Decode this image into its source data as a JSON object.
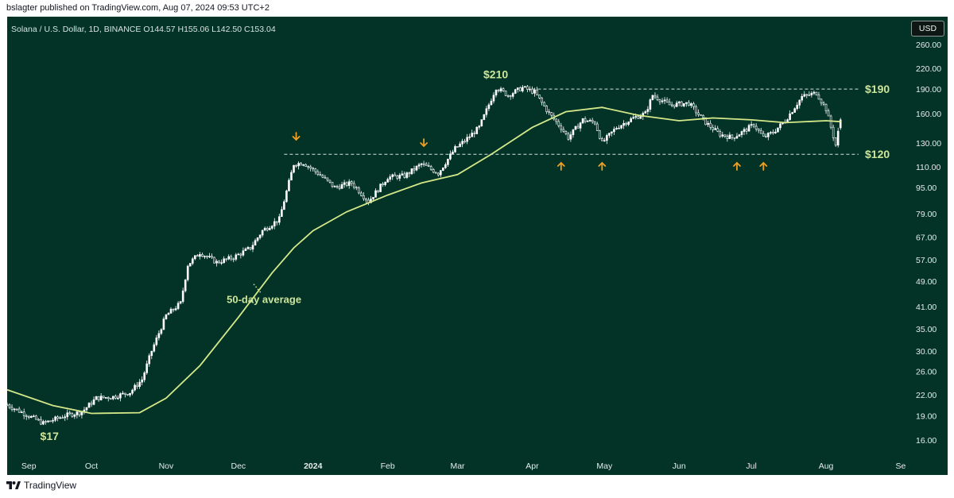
{
  "header": {
    "text": "bslagter published on TradingView.com, Aug 07, 2024 09:53 UTC+2"
  },
  "symbol_info": "Solana / U.S. Dollar, 1D, BINANCE  O144.57  H155.06  L142.50  C153.04",
  "currency_button": "USD",
  "footer": {
    "brand": "TradingView"
  },
  "colors": {
    "background": "#033327",
    "candle": "#ffffff",
    "ma_line": "#d4e88a",
    "arrow": "#f0a020",
    "annotation": "#cde59a"
  },
  "chart_data": {
    "type": "candlestick",
    "y_scale": "log",
    "y_ticks": [
      "260.00",
      "220.00",
      "190.00",
      "160.00",
      "130.00",
      "110.00",
      "95.00",
      "79.00",
      "67.00",
      "57.00",
      "49.00",
      "41.00",
      "35.00",
      "30.00",
      "26.00",
      "22.00",
      "19.00",
      "16.00"
    ],
    "x_ticks": [
      "Sep",
      "Oct",
      "Nov",
      "Dec",
      "2024",
      "Feb",
      "Mar",
      "Apr",
      "May",
      "Jun",
      "Jul",
      "Aug",
      "Se"
    ],
    "x_range": [
      "2023-08-27",
      "2024-09-02"
    ],
    "last_ohlc": {
      "open": 144.57,
      "high": 155.06,
      "low": 142.5,
      "close": 153.04
    },
    "price_path": [
      [
        "2023-08-27",
        20.5
      ],
      [
        "2023-09-11",
        18.0
      ],
      [
        "2023-09-20",
        19.0
      ],
      [
        "2023-09-27",
        19.5
      ],
      [
        "2023-10-03",
        21.5
      ],
      [
        "2023-10-10",
        21.7
      ],
      [
        "2023-10-17",
        22.4
      ],
      [
        "2023-10-22",
        24.5
      ],
      [
        "2023-10-26",
        30.0
      ],
      [
        "2023-11-01",
        38.5
      ],
      [
        "2023-11-07",
        42.0
      ],
      [
        "2023-11-10",
        55.0
      ],
      [
        "2023-11-15",
        60.0
      ],
      [
        "2023-11-22",
        56.0
      ],
      [
        "2023-11-29",
        58.0
      ],
      [
        "2023-12-06",
        62.0
      ],
      [
        "2023-12-11",
        70.0
      ],
      [
        "2023-12-18",
        76.0
      ],
      [
        "2023-12-24",
        112.0
      ],
      [
        "2023-12-28",
        113.0
      ],
      [
        "2024-01-03",
        105.0
      ],
      [
        "2024-01-10",
        95.0
      ],
      [
        "2024-01-17",
        98.0
      ],
      [
        "2024-01-24",
        86.0
      ],
      [
        "2024-02-01",
        102.0
      ],
      [
        "2024-02-08",
        103.0
      ],
      [
        "2024-02-15",
        112.0
      ],
      [
        "2024-02-22",
        105.0
      ],
      [
        "2024-02-29",
        125.0
      ],
      [
        "2024-03-04",
        132.0
      ],
      [
        "2024-03-10",
        145.0
      ],
      [
        "2024-03-17",
        192.0
      ],
      [
        "2024-03-22",
        182.0
      ],
      [
        "2024-03-28",
        192.0
      ],
      [
        "2024-04-02",
        186.0
      ],
      [
        "2024-04-08",
        160.0
      ],
      [
        "2024-04-13",
        145.0
      ],
      [
        "2024-04-16",
        135.0
      ],
      [
        "2024-04-22",
        153.0
      ],
      [
        "2024-04-27",
        150.0
      ],
      [
        "2024-04-30",
        130.0
      ],
      [
        "2024-05-06",
        145.0
      ],
      [
        "2024-05-13",
        155.0
      ],
      [
        "2024-05-18",
        160.0
      ],
      [
        "2024-05-21",
        182.0
      ],
      [
        "2024-05-28",
        170.0
      ],
      [
        "2024-06-05",
        172.0
      ],
      [
        "2024-06-12",
        150.0
      ],
      [
        "2024-06-18",
        138.0
      ],
      [
        "2024-06-23",
        135.0
      ],
      [
        "2024-06-27",
        140.0
      ],
      [
        "2024-07-02",
        148.0
      ],
      [
        "2024-07-06",
        135.0
      ],
      [
        "2024-07-10",
        140.0
      ],
      [
        "2024-07-15",
        152.0
      ],
      [
        "2024-07-22",
        180.0
      ],
      [
        "2024-07-28",
        185.0
      ],
      [
        "2024-08-01",
        165.0
      ],
      [
        "2024-08-05",
        128.0
      ],
      [
        "2024-08-07",
        153.0
      ]
    ],
    "ma_path": [
      [
        "2023-08-27",
        22.8
      ],
      [
        "2023-09-15",
        20.4
      ],
      [
        "2023-10-01",
        19.3
      ],
      [
        "2023-10-21",
        19.4
      ],
      [
        "2023-11-01",
        21.5
      ],
      [
        "2023-11-15",
        27.0
      ],
      [
        "2023-12-01",
        38.0
      ],
      [
        "2023-12-15",
        52.0
      ],
      [
        "2023-12-24",
        62.0
      ],
      [
        "2024-01-01",
        70.0
      ],
      [
        "2024-01-15",
        80.0
      ],
      [
        "2024-02-01",
        90.0
      ],
      [
        "2024-02-15",
        98.0
      ],
      [
        "2024-03-01",
        104.0
      ],
      [
        "2024-03-15",
        120.0
      ],
      [
        "2024-04-01",
        145.0
      ],
      [
        "2024-04-15",
        162.0
      ],
      [
        "2024-04-30",
        167.0
      ],
      [
        "2024-05-15",
        158.0
      ],
      [
        "2024-06-01",
        152.0
      ],
      [
        "2024-06-15",
        155.0
      ],
      [
        "2024-07-01",
        153.0
      ],
      [
        "2024-07-15",
        150.0
      ],
      [
        "2024-08-01",
        152.0
      ],
      [
        "2024-08-07",
        151.0
      ]
    ],
    "levels": [
      {
        "price": 190,
        "from": "2024-04-01",
        "label": "$190"
      },
      {
        "price": 120,
        "from": "2023-12-20",
        "label": "$120"
      }
    ],
    "annotations": [
      {
        "text": "$210",
        "date": "2024-03-17",
        "price": 205
      },
      {
        "text": "$17",
        "date": "2023-09-15",
        "price": 16.0
      },
      {
        "text": "50-day average",
        "date": "2023-12-10",
        "price": 42
      }
    ],
    "down_arrows": [
      "2023-12-25",
      "2024-02-16"
    ],
    "up_arrows": [
      "2024-04-13",
      "2024-04-30",
      "2024-06-25",
      "2024-07-06"
    ]
  }
}
